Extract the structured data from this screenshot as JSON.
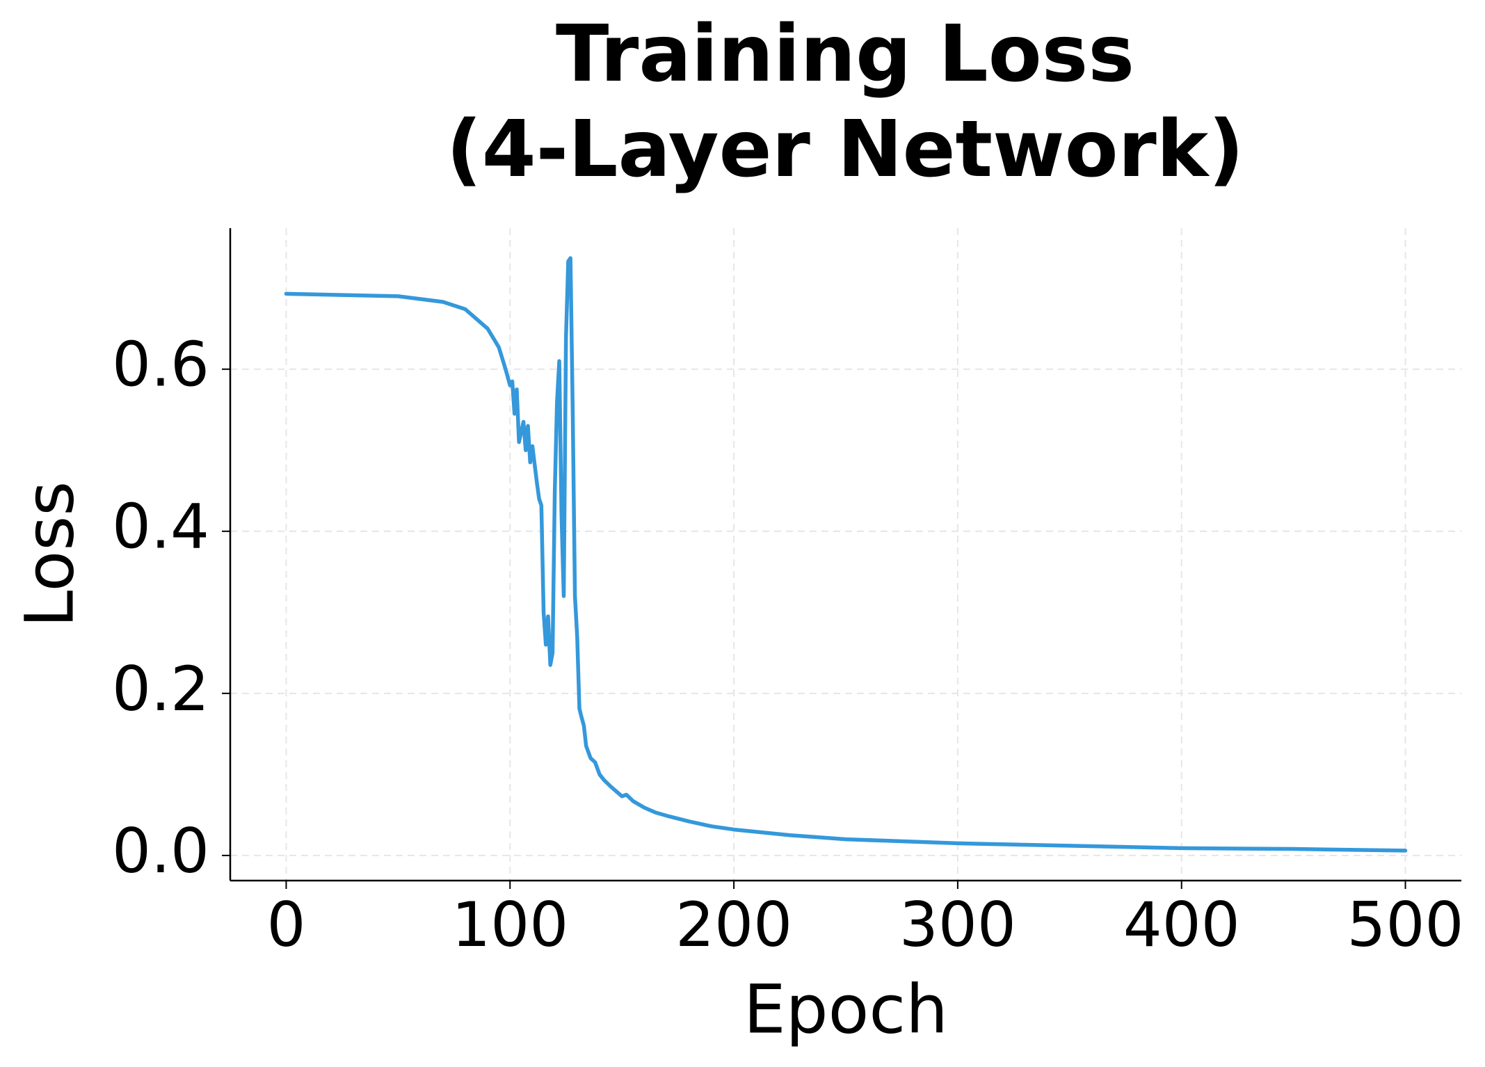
{
  "chart_data": {
    "type": "line",
    "title": [
      "Training Loss",
      "(4-Layer Network)"
    ],
    "x_label": "Epoch",
    "y_label": "Loss",
    "x": [
      0,
      50,
      70,
      80,
      90,
      95,
      98,
      100,
      101,
      102,
      103,
      104,
      106,
      107,
      108,
      109,
      110,
      112,
      113,
      114,
      115,
      116,
      117,
      118,
      119,
      120,
      121,
      122,
      123,
      124,
      125,
      126,
      127,
      128,
      129,
      130,
      131,
      132,
      133,
      134,
      136,
      138,
      140,
      142,
      145,
      150,
      152,
      155,
      160,
      165,
      170,
      180,
      190,
      200,
      225,
      250,
      300,
      350,
      400,
      450,
      500
    ],
    "values": [
      0.693,
      0.69,
      0.683,
      0.674,
      0.65,
      0.627,
      0.6,
      0.58,
      0.585,
      0.545,
      0.575,
      0.51,
      0.535,
      0.5,
      0.53,
      0.485,
      0.505,
      0.46,
      0.44,
      0.432,
      0.3,
      0.26,
      0.295,
      0.235,
      0.25,
      0.45,
      0.56,
      0.61,
      0.42,
      0.32,
      0.64,
      0.733,
      0.737,
      0.55,
      0.32,
      0.27,
      0.181,
      0.17,
      0.16,
      0.135,
      0.12,
      0.115,
      0.1,
      0.093,
      0.085,
      0.073,
      0.075,
      0.067,
      0.059,
      0.053,
      0.049,
      0.042,
      0.036,
      0.032,
      0.025,
      0.02,
      0.015,
      0.012,
      0.009,
      0.008,
      0.006
    ],
    "color": "#3498db",
    "xlim": [
      -25,
      525
    ],
    "ylim": [
      -0.031,
      0.774
    ],
    "xticks": [
      0,
      100,
      200,
      300,
      400,
      500
    ],
    "yticks": [
      {
        "value": 0,
        "label": "0.0"
      },
      0.2,
      0.4,
      0.6
    ],
    "grid": true
  }
}
